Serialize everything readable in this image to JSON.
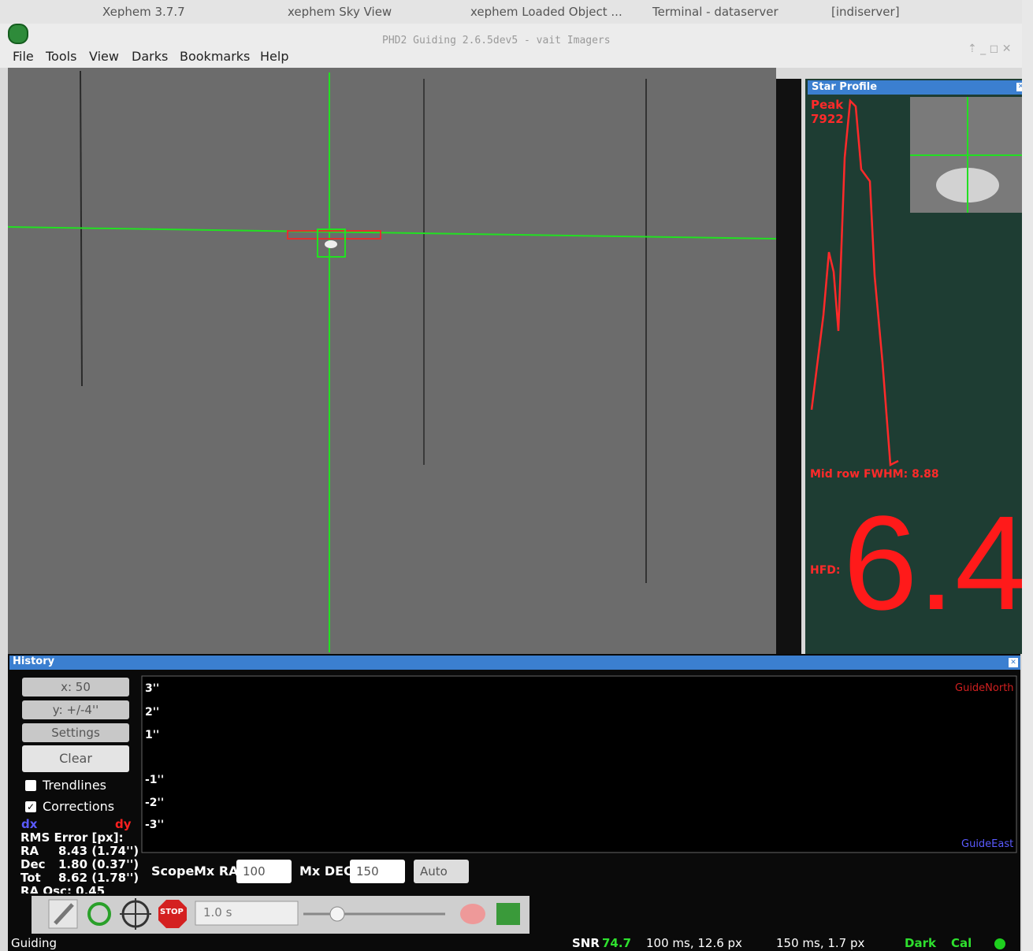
{
  "taskbar": {
    "tabs": [
      "Xephem 3.7.7",
      "xephem Sky View",
      "xephem Loaded Object ...",
      "Terminal - dataserver",
      "[indiserver]"
    ]
  },
  "window": {
    "title": "PHD2 Guiding 2.6.5dev5 - vait Imagers"
  },
  "menu": [
    "File",
    "Tools",
    "View",
    "Darks",
    "Bookmarks",
    "Help"
  ],
  "star_profile": {
    "title": "Star Profile",
    "peak_label": "Peak",
    "peak": 7922,
    "fwhm": "Mid row FWHM: 8.88",
    "hfd_label": "HFD:",
    "hfd": 6.4
  },
  "history": {
    "title": "History",
    "x_scale": "x: 50",
    "y_scale": "y: +/-4''",
    "settings": "Settings",
    "clear": "Clear",
    "trendlines": "Trendlines",
    "corrections": "Corrections",
    "dx": "dx",
    "dy": "dy",
    "rms_title": "RMS Error [px]:",
    "rms": [
      [
        "RA",
        "8.43 (1.74'')"
      ],
      [
        "Dec",
        "1.80 (0.37'')"
      ],
      [
        "Tot",
        "8.62 (1.78'')"
      ]
    ],
    "osc": "RA Osc: 0.45",
    "y_labels": [
      "3''",
      "2''",
      "1''",
      "-1''",
      "-2''",
      "-3''"
    ],
    "north": "GuideNorth",
    "east": "GuideEast",
    "scope": "Scope:",
    "mx_ra_label": "Mx RA",
    "mx_ra": 100,
    "mx_dec_label": "Mx DEC",
    "mx_dec": 150,
    "mode": "Auto"
  },
  "toolbar": {
    "stop": "STOP",
    "exposure": "1.0 s"
  },
  "status": {
    "state": "Guiding",
    "snr_label": "SNR",
    "snr": 74.7,
    "ra_pulse": "100 ms, 12.6 px",
    "dec_pulse": "150 ms, 1.7 px",
    "dark": "Dark",
    "cal": "Cal"
  }
}
